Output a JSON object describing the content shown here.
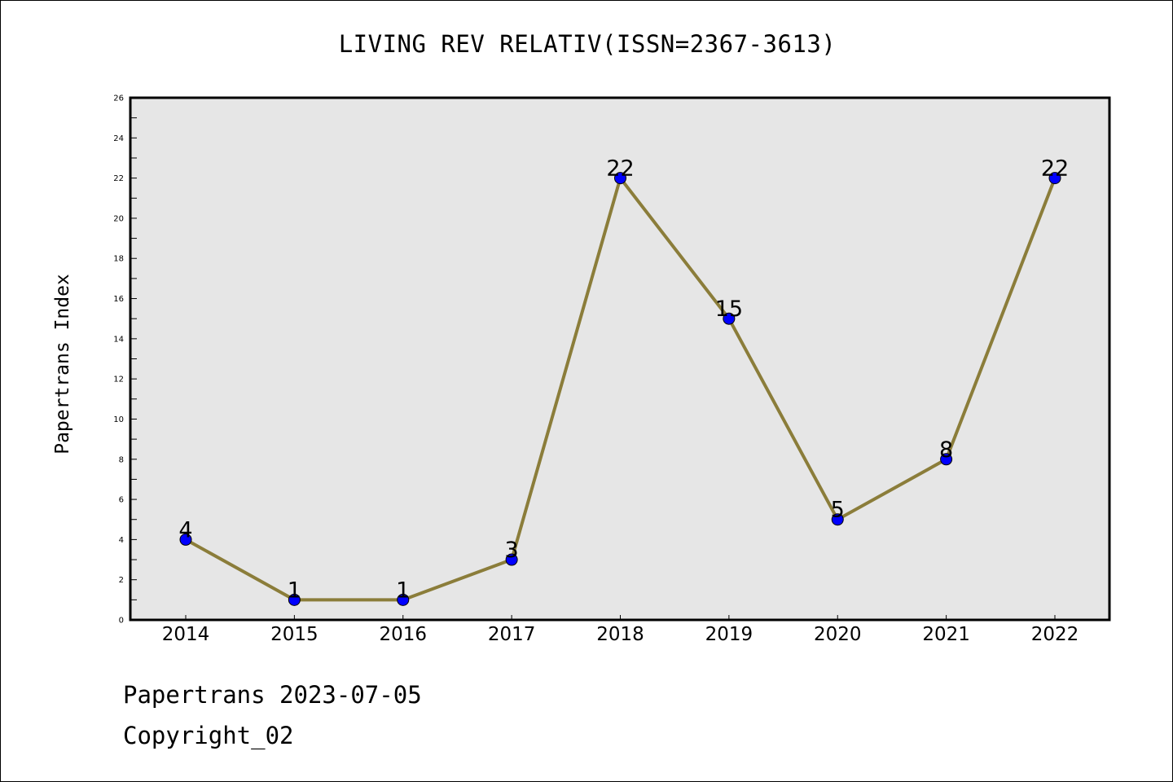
{
  "chart_data": {
    "type": "line",
    "title": "LIVING REV RELATIV(ISSN=2367-3613)",
    "xlabel": "",
    "ylabel": "Papertrans Index",
    "categories": [
      "2014",
      "2015",
      "2016",
      "2017",
      "2018",
      "2019",
      "2020",
      "2021",
      "2022"
    ],
    "series": [
      {
        "values": [
          4,
          1,
          1,
          3,
          22,
          15,
          5,
          8,
          22
        ],
        "line_color": "#8B7D3A",
        "marker_color": "#0000FF"
      }
    ],
    "ylim": [
      0,
      26
    ],
    "yticks": [
      0,
      2,
      4,
      6,
      8,
      10,
      12,
      14,
      16,
      18,
      20,
      22,
      24,
      26
    ],
    "data_labels": true,
    "grid": false,
    "legend": "none",
    "plot_background": "#E6E6E6"
  },
  "footer": {
    "line1": "Papertrans 2023-07-05",
    "line2": "Copyright_02"
  }
}
